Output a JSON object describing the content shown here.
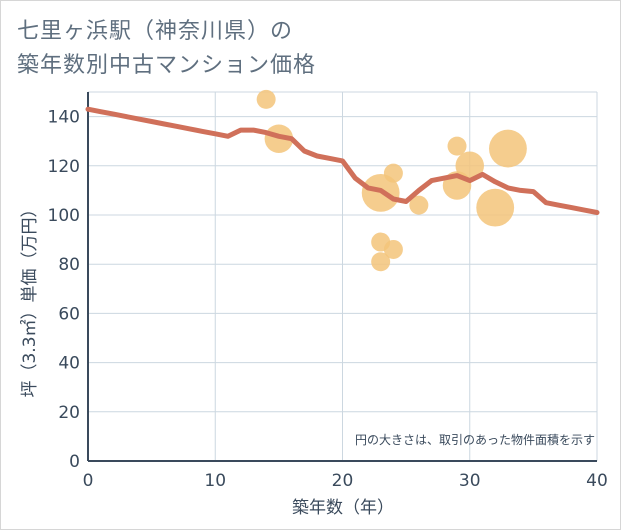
{
  "title": {
    "line1": "七里ヶ浜駅（神奈川県）の",
    "line2": "築年数別中古マンション価格"
  },
  "chart_data": {
    "type": "scatter",
    "xlabel": "築年数（年）",
    "ylabel": "坪（3.3㎡）単価（万円）",
    "xlim": [
      0,
      40
    ],
    "ylim": [
      0,
      150
    ],
    "x_ticks": [
      0,
      10,
      20,
      30,
      40
    ],
    "y_ticks": [
      0,
      20,
      40,
      60,
      80,
      100,
      120,
      140
    ],
    "grid": true,
    "annotation": "円の大きさは、取引のあった物件面積を示す",
    "colors": {
      "bubble": "#f3c47a",
      "trend": "#d0705a",
      "grid": "#ccd7e0",
      "axis": "#3a4a5c"
    },
    "bubbles": [
      {
        "x": 14,
        "y": 147,
        "size": 1
      },
      {
        "x": 15,
        "y": 131,
        "size": 3
      },
      {
        "x": 23,
        "y": 109,
        "size": 6
      },
      {
        "x": 23,
        "y": 89,
        "size": 1
      },
      {
        "x": 23,
        "y": 81,
        "size": 1
      },
      {
        "x": 24,
        "y": 117,
        "size": 1
      },
      {
        "x": 24,
        "y": 86,
        "size": 1
      },
      {
        "x": 26,
        "y": 104,
        "size": 1
      },
      {
        "x": 29,
        "y": 128,
        "size": 1
      },
      {
        "x": 29,
        "y": 112,
        "size": 3
      },
      {
        "x": 30,
        "y": 120,
        "size": 3
      },
      {
        "x": 32,
        "y": 103,
        "size": 6
      },
      {
        "x": 33,
        "y": 127,
        "size": 6
      }
    ],
    "trend": {
      "x": [
        0,
        1,
        2,
        3,
        4,
        5,
        6,
        7,
        8,
        9,
        10,
        11,
        12,
        13,
        14,
        15,
        16,
        17,
        18,
        19,
        20,
        21,
        22,
        23,
        24,
        25,
        26,
        27,
        28,
        29,
        30,
        31,
        32,
        33,
        34,
        35,
        36,
        37,
        38,
        39,
        40
      ],
      "y": [
        143,
        142,
        141,
        140,
        139,
        138,
        137,
        136,
        135,
        134,
        133,
        132,
        134.5,
        134.5,
        133.5,
        132,
        131,
        126,
        124,
        123,
        122,
        115,
        111,
        110,
        106.5,
        105.5,
        110,
        114,
        115,
        116,
        114,
        116.5,
        113.5,
        111,
        110,
        109.5,
        105,
        104,
        103,
        102,
        101
      ]
    }
  }
}
